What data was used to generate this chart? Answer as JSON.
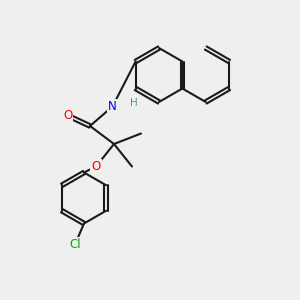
{
  "background_color": "#efefef",
  "bond_color": "#1a1a1a",
  "bond_width": 1.5,
  "atom_colors": {
    "O": "#ff0000",
    "N": "#0000ff",
    "Cl": "#00aa00",
    "H": "#4a9a8a"
  }
}
